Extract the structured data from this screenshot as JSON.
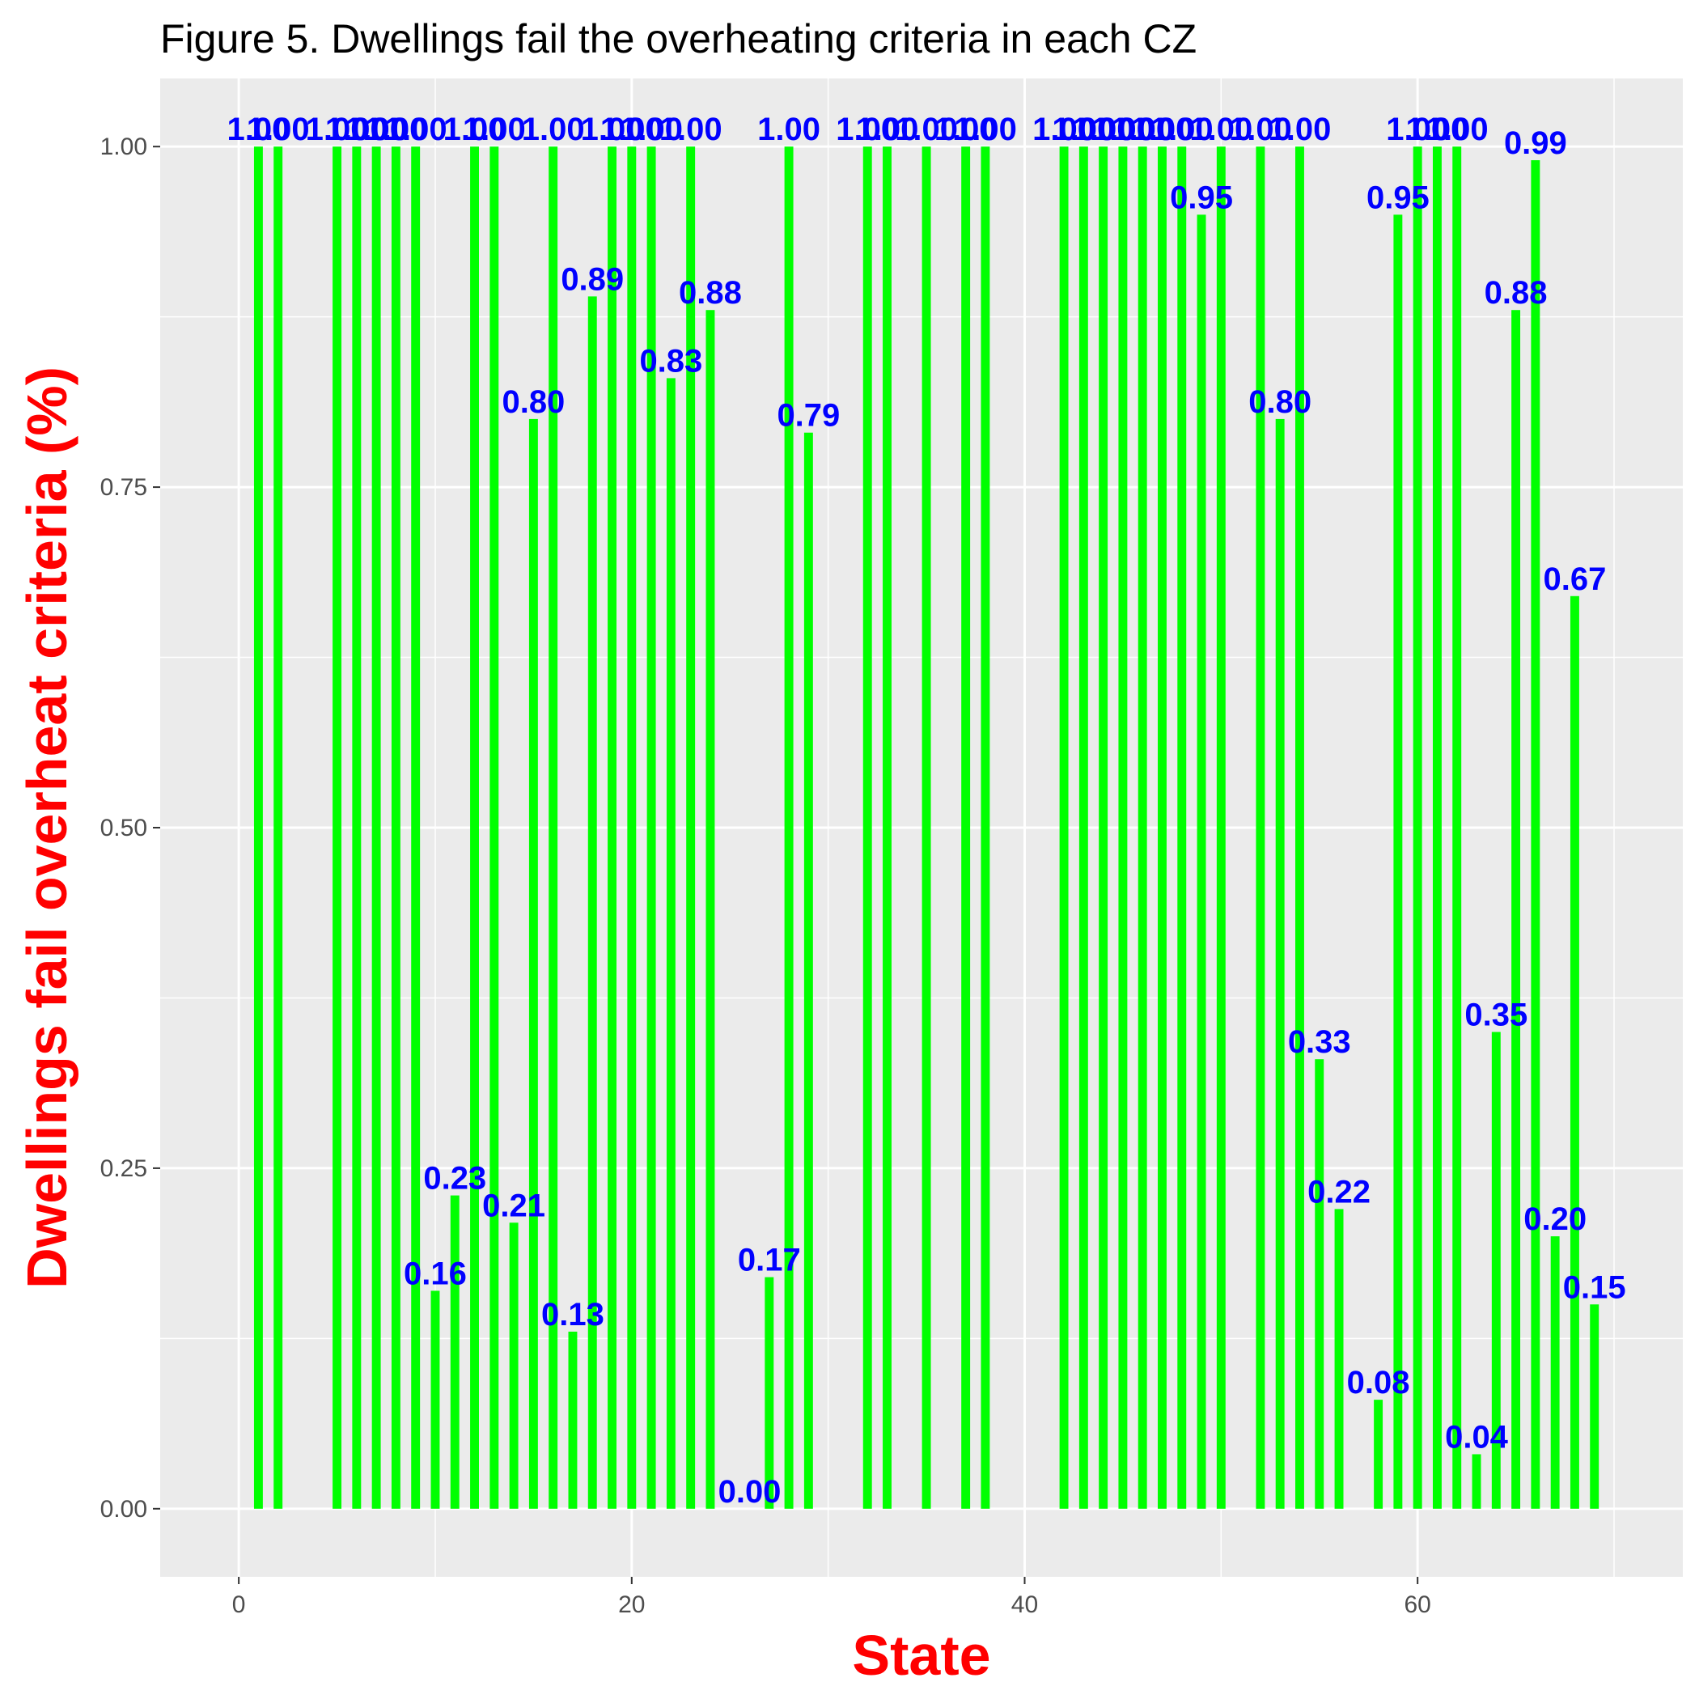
{
  "chart_data": {
    "type": "bar",
    "title": "Figure 5. Dwellings fail the overheating criteria in each CZ",
    "xlabel": "State",
    "ylabel": "Dwellings fail overheat criteria (%)",
    "xlim": [
      -4,
      73.5
    ],
    "ylim": [
      -0.05,
      1.05
    ],
    "x_ticks": [
      0,
      20,
      40,
      60
    ],
    "x_tick_labels": [
      "0",
      "20",
      "40",
      "60"
    ],
    "y_ticks": [
      0,
      0.25,
      0.5,
      0.75,
      1.0
    ],
    "y_tick_labels": [
      "0.00",
      "0.25",
      "0.50",
      "0.75",
      "1.00"
    ],
    "grid": true,
    "bar_color": "#00ff00",
    "label_color": "#0000ff",
    "title_color": "#000000",
    "axis_title_color": "#ff0000",
    "panel_color": "#ebebeb",
    "grid_color": "#ffffff",
    "x": [
      1,
      2,
      5,
      6,
      7,
      8,
      9,
      10,
      11,
      12,
      13,
      14,
      15,
      16,
      17,
      18,
      19,
      20,
      21,
      22,
      23,
      24,
      26,
      27,
      28,
      29,
      32,
      33,
      35,
      37,
      38,
      42,
      43,
      44,
      45,
      46,
      47,
      48,
      49,
      50,
      52,
      53,
      54,
      55,
      56,
      58,
      59,
      60,
      61,
      62,
      63,
      64,
      65,
      66,
      67,
      68,
      69
    ],
    "values": [
      1.0,
      1.0,
      1.0,
      1.0,
      1.0,
      1.0,
      1.0,
      0.16,
      0.23,
      1.0,
      1.0,
      0.21,
      0.8,
      1.0,
      0.13,
      0.89,
      1.0,
      1.0,
      1.0,
      0.83,
      1.0,
      0.88,
      0.0,
      0.17,
      1.0,
      0.79,
      1.0,
      1.0,
      1.0,
      1.0,
      1.0,
      1.0,
      1.0,
      1.0,
      1.0,
      1.0,
      1.0,
      1.0,
      0.95,
      1.0,
      1.0,
      0.8,
      1.0,
      0.33,
      0.22,
      0.08,
      0.95,
      1.0,
      1.0,
      1.0,
      0.04,
      0.35,
      0.88,
      0.99,
      0.2,
      0.67,
      0.15
    ],
    "data_labels": [
      "1.00",
      "1.00",
      "1.00",
      "1.00",
      "1.00",
      "1.00",
      "1.00",
      "0.16",
      "0.23",
      "1.00",
      "1.00",
      "0.21",
      "0.80",
      "1.00",
      "0.13",
      "0.89",
      "1.00",
      "1.00",
      "1.00",
      "0.83",
      "1.00",
      "0.88",
      "0.00",
      "0.17",
      "1.00",
      "0.79",
      "1.00",
      "1.00",
      "1.00",
      "1.00",
      "1.00",
      "1.00",
      "1.00",
      "1.00",
      "1.00",
      "1.00",
      "1.00",
      "1.00",
      "0.95",
      "1.00",
      "1.00",
      "0.80",
      "1.00",
      "0.33",
      "0.22",
      "0.08",
      "0.95",
      "1.00",
      "1.00",
      "1.00",
      "0.04",
      "0.35",
      "0.88",
      "0.99",
      "0.20",
      "0.67",
      "0.15"
    ]
  }
}
